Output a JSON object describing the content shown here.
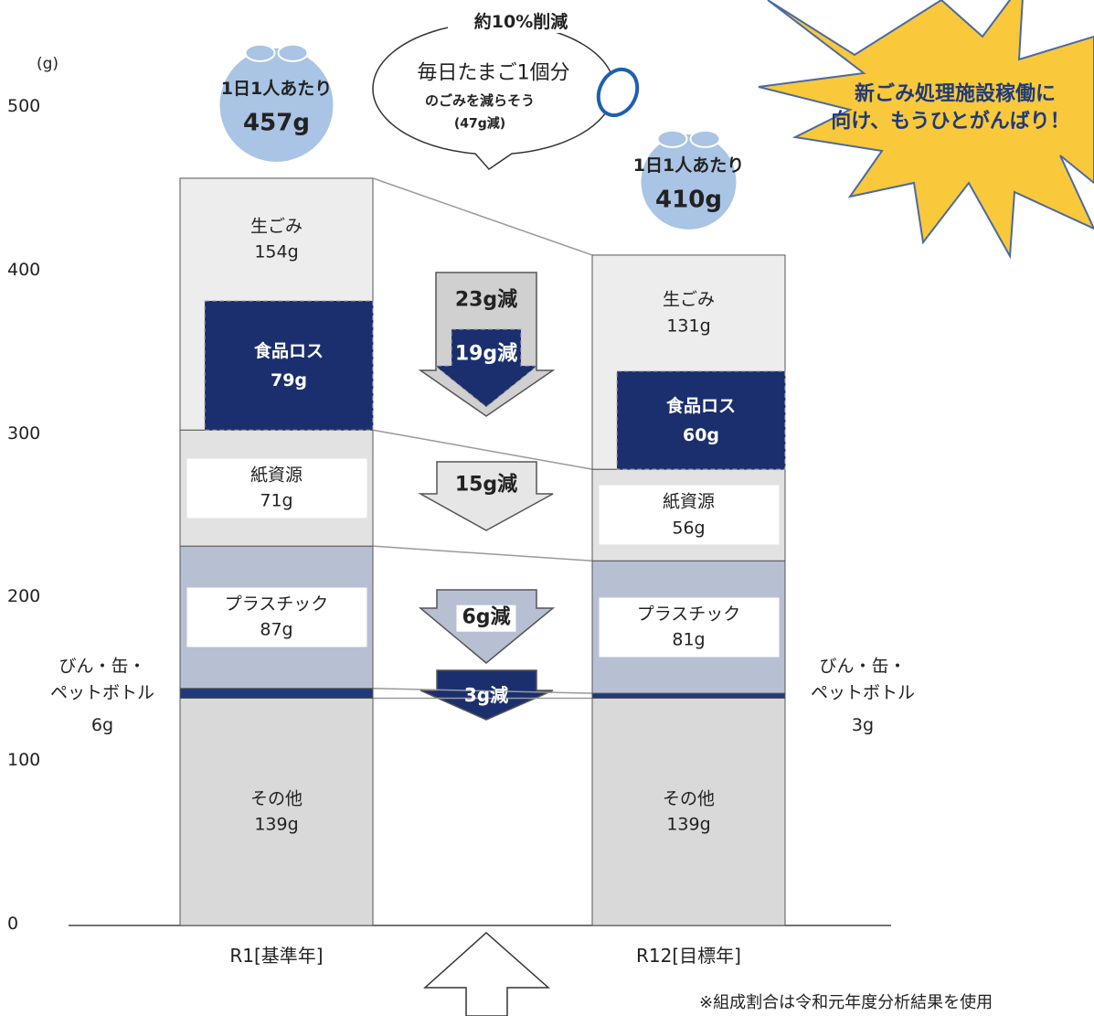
{
  "chart_data": {
    "type": "stacked_bar",
    "y_unit": "(g)",
    "categories": [
      "R1[基準年]",
      "R12[目標年]"
    ],
    "ylim": [
      0,
      500
    ],
    "yticks": [
      0,
      100,
      200,
      300,
      400,
      500
    ],
    "grid": false,
    "series": [
      {
        "name": "その他",
        "color": "#d9d9d9",
        "values": [
          139,
          139
        ],
        "value_labels": [
          "139g",
          "139g"
        ]
      },
      {
        "name": "びん・缶・\nペットボトル",
        "color": "#1f3a7a",
        "values": [
          6,
          3
        ],
        "value_labels": [
          "6g",
          "3g"
        ],
        "label_outside": true
      },
      {
        "name": "プラスチック",
        "color": "#b7bfd3",
        "values": [
          87,
          81
        ],
        "value_labels": [
          "87g",
          "81g"
        ],
        "label_box": true
      },
      {
        "name": "紙資源",
        "color": "#e2e2e2",
        "values": [
          71,
          56
        ],
        "value_labels": [
          "71g",
          "56g"
        ],
        "label_box": true
      },
      {
        "name": "生ごみ",
        "color": "#ededed",
        "values": [
          154,
          131
        ],
        "value_labels": [
          "154g",
          "131g"
        ]
      },
      {
        "name": "食品ロス",
        "color": "#1b2f6e",
        "values": [
          79,
          60
        ],
        "value_labels": [
          "79g",
          "60g"
        ],
        "overlay": true
      }
    ],
    "totals": {
      "caption": "1日1人あたり",
      "values": [
        457,
        410
      ],
      "value_labels": [
        "457g",
        "410g"
      ],
      "color": "#a9c4e4"
    },
    "reductions": [
      "23g減",
      "19g減",
      "15g減",
      "6g減",
      "3g減"
    ],
    "callout": {
      "title": "約10%削減",
      "lines": [
        "毎日たまご1個分",
        "のごみを減らそう",
        "(47g減)"
      ]
    },
    "banner": [
      "新ごみ処理施設稼働に",
      "向け、もうひとがんばり！"
    ],
    "note": "※組成割合は令和元年度分析結果を使用"
  }
}
